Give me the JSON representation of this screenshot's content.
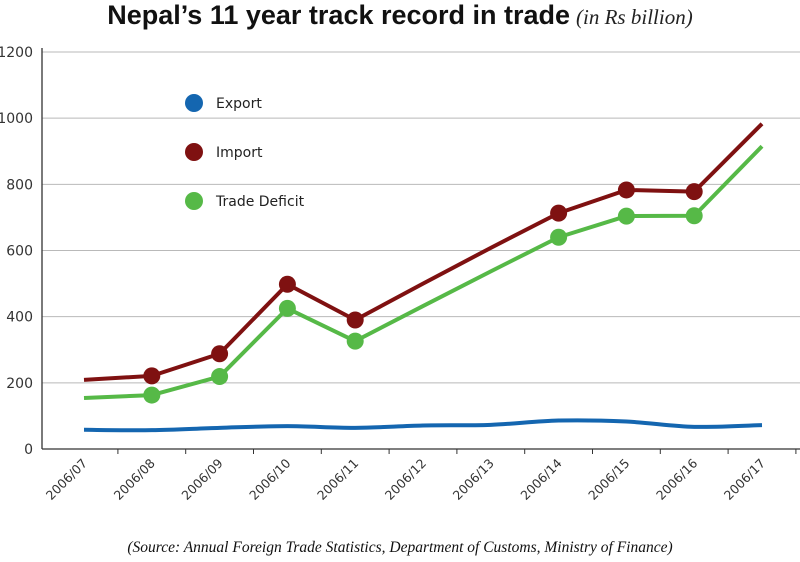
{
  "chart_data": {
    "type": "line",
    "title": "Nepal’s 11 year track record in trade",
    "subtitle": "(in Rs billion)",
    "source": "(Source: Annual Foreign Trade Statistics, Department of Customs, Ministry of Finance)",
    "categories": [
      "2006/07",
      "2006/08",
      "2006/09",
      "2006/10",
      "2006/11",
      "2006/12",
      "2006/13",
      "2006/14",
      "2006/15",
      "2006/16",
      "2006/17"
    ],
    "y_ticks": [
      "0",
      "200",
      "400",
      "600",
      "800",
      "1000",
      "1200"
    ],
    "ylim": [
      0,
      1200
    ],
    "grid": true,
    "legend_position": "top-left",
    "series": [
      {
        "name": "Export",
        "color": "#1466b0",
        "markers": [],
        "values": [
          58,
          57,
          64,
          69,
          64,
          71,
          73,
          86,
          83,
          67,
          72
        ]
      },
      {
        "name": "Import",
        "color": "#7f1111",
        "markers": [
          1,
          2,
          3,
          4,
          7,
          8,
          9
        ],
        "values": [
          209,
          221,
          288,
          498,
          390,
          500,
          608,
          713,
          783,
          778,
          983
        ]
      },
      {
        "name": "Trade Deficit",
        "color": "#56b947",
        "markers": [
          1,
          2,
          3,
          4,
          7,
          8,
          9
        ],
        "values": [
          154,
          163,
          219,
          425,
          326,
          432,
          537,
          640,
          704,
          705,
          915
        ]
      }
    ]
  }
}
